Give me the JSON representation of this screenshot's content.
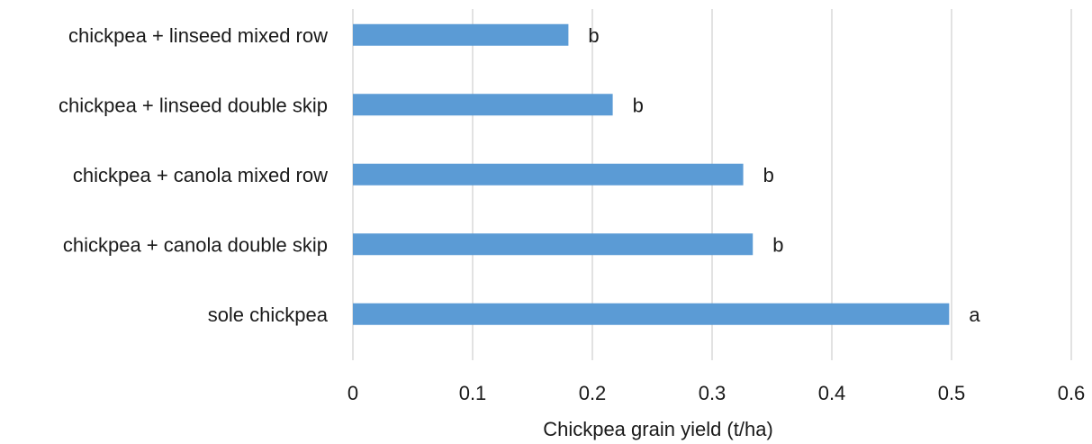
{
  "chart_data": {
    "type": "bar",
    "orientation": "horizontal",
    "title": "",
    "xlabel": "Chickpea grain yield (t/ha)",
    "ylabel": "",
    "xlim": [
      0,
      0.6
    ],
    "x_ticks": [
      0,
      0.1,
      0.2,
      0.3,
      0.4,
      0.5,
      0.6
    ],
    "x_tick_labels": [
      "0",
      "0.1",
      "0.2",
      "0.3",
      "0.4",
      "0.5",
      "0.6"
    ],
    "grid": "vertical",
    "legend": "none",
    "bar_color": "#5b9bd5",
    "categories": [
      "chickpea + linseed mixed row",
      "chickpea + linseed double skip",
      "chickpea + canola mixed row",
      "chickpea + canola double skip",
      "sole chickpea"
    ],
    "values": [
      0.18,
      0.217,
      0.326,
      0.334,
      0.498
    ],
    "annotations": [
      "b",
      "b",
      "b",
      "b",
      "a"
    ]
  }
}
